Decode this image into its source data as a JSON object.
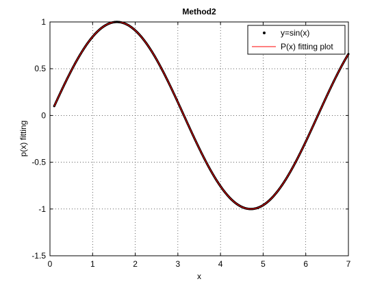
{
  "chart_data": {
    "type": "line",
    "title": "Method2",
    "xlabel": "x",
    "ylabel": "p(x) fitting",
    "xlim": [
      0,
      7
    ],
    "ylim": [
      -1.5,
      1
    ],
    "x_ticks": [
      0,
      1,
      2,
      3,
      4,
      5,
      6,
      7
    ],
    "x_tick_labels": [
      "0",
      "1",
      "2",
      "3",
      "4",
      "5",
      "6",
      "7"
    ],
    "y_ticks": [
      1,
      0.5,
      0,
      -0.5,
      -1,
      -1.5
    ],
    "y_tick_labels": [
      "1",
      "0.5",
      "0",
      "-0.5",
      "-1",
      "-1.5"
    ],
    "grid": "dotted",
    "legend_position": "top-right",
    "x_range": [
      0.1,
      7.0
    ],
    "series": [
      {
        "name": "y=sin(x)",
        "style": "markers",
        "marker": "point",
        "color": "#000000",
        "function": "sin(x)",
        "x_start": 0.1,
        "x_end": 7.0,
        "x_step": 0.01
      },
      {
        "name": "P(x) fitting plot",
        "style": "line",
        "color": "#ff0000",
        "function": "polynomial fit of sin(x)",
        "x_start": 0.1,
        "x_end": 7.0
      }
    ]
  }
}
